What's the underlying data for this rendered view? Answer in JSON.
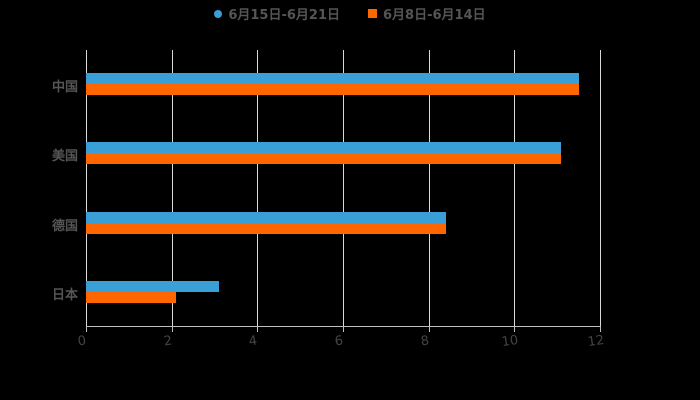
{
  "legend": [
    {
      "label": "6月15日-6月21日",
      "color": "#3a9fd6",
      "marker": "circle"
    },
    {
      "label": "6月8日-6月14日",
      "color": "#ff6600",
      "marker": "square"
    }
  ],
  "x_ticks": [
    "0",
    "2",
    "4",
    "6",
    "8",
    "10",
    "12"
  ],
  "categories": [
    "中国",
    "美国",
    "德国",
    "日本"
  ],
  "chart_data": {
    "type": "bar",
    "orientation": "horizontal",
    "title": "",
    "categories": [
      "中国",
      "美国",
      "德国",
      "日本"
    ],
    "series": [
      {
        "name": "6月15日-6月21日",
        "color": "#3a9fd6",
        "values": [
          11.5,
          11.1,
          8.4,
          3.1
        ]
      },
      {
        "name": "6月8日-6月14日",
        "color": "#ff6600",
        "values": [
          11.5,
          11.1,
          8.4,
          2.1
        ]
      }
    ],
    "xlabel": "",
    "ylabel": "",
    "xlim": [
      0,
      12
    ],
    "x_ticks": [
      0,
      2,
      4,
      6,
      8,
      10,
      12
    ],
    "grid": true,
    "legend_position": "top"
  }
}
